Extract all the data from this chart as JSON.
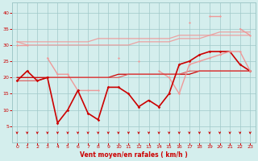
{
  "x": [
    0,
    1,
    2,
    3,
    4,
    5,
    6,
    7,
    8,
    9,
    10,
    11,
    12,
    13,
    14,
    15,
    16,
    17,
    18,
    19,
    20,
    21,
    22,
    23
  ],
  "pale_top1": [
    31,
    30,
    30,
    30,
    30,
    30,
    30,
    30,
    30,
    30,
    30,
    30,
    31,
    31,
    31,
    31,
    32,
    32,
    32,
    33,
    33,
    33,
    33,
    33
  ],
  "pale_top2": [
    31,
    31,
    31,
    31,
    31,
    31,
    31,
    31,
    32,
    32,
    32,
    32,
    32,
    32,
    32,
    32,
    33,
    33,
    33,
    33,
    34,
    34,
    34,
    34
  ],
  "pale_jagged": [
    30,
    30,
    null,
    null,
    null,
    null,
    null,
    null,
    null,
    null,
    null,
    null,
    null,
    null,
    null,
    null,
    null,
    37,
    null,
    39,
    39,
    null,
    35,
    33
  ],
  "pale_mid": [
    null,
    null,
    null,
    26,
    21,
    21,
    16,
    16,
    16,
    null,
    26,
    null,
    25,
    null,
    22,
    20,
    15,
    null,
    null,
    null,
    null,
    null,
    null,
    null
  ],
  "dark_trend1": [
    20,
    20,
    20,
    20,
    20,
    20,
    20,
    20,
    20,
    20,
    21,
    21,
    21,
    21,
    21,
    21,
    21,
    21,
    22,
    22,
    22,
    22,
    22,
    22
  ],
  "dark_trend2": [
    19,
    19,
    19,
    20,
    20,
    20,
    20,
    20,
    20,
    20,
    20,
    21,
    21,
    21,
    21,
    21,
    21,
    22,
    22,
    22,
    22,
    22,
    22,
    22
  ],
  "wind_avg": [
    19,
    22,
    19,
    20,
    6,
    10,
    16,
    9,
    7,
    17,
    17,
    15,
    11,
    13,
    11,
    15,
    24,
    25,
    27,
    28,
    28,
    28,
    24,
    22
  ],
  "wind_gust": [
    null,
    null,
    null,
    null,
    null,
    null,
    null,
    null,
    null,
    null,
    null,
    null,
    null,
    null,
    null,
    null,
    15,
    24,
    25,
    26,
    27,
    28,
    28,
    22
  ],
  "bg_color": "#d4eeed",
  "grid_color": "#a0c8c8",
  "color_dark": "#cc0000",
  "color_med": "#dd5555",
  "color_pale": "#ee9999",
  "xlabel": "Vent moyen/en rafales ( km/h )",
  "ylim": [
    0,
    43
  ],
  "yticks": [
    5,
    10,
    15,
    20,
    25,
    30,
    35,
    40
  ],
  "xticks": [
    0,
    1,
    2,
    3,
    4,
    5,
    6,
    7,
    8,
    9,
    10,
    11,
    12,
    13,
    14,
    15,
    16,
    17,
    18,
    19,
    20,
    21,
    22,
    23
  ]
}
